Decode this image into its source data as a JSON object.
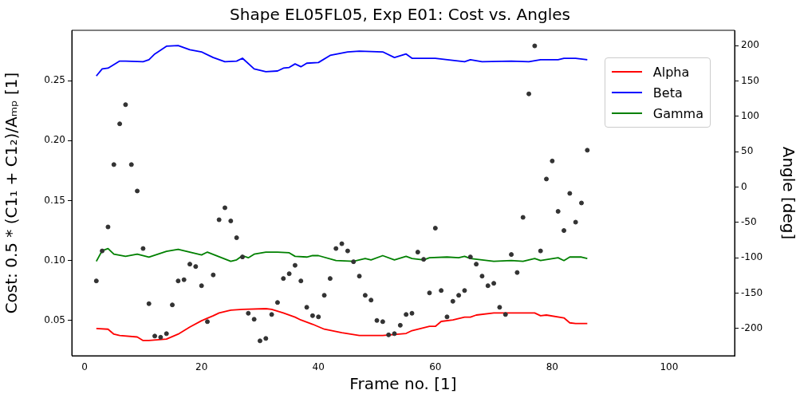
{
  "chart_data": {
    "type": "line",
    "title": "Shape EL05FL05, Exp E01: Cost vs. Angles",
    "xlabel": "Frame no. [1]",
    "ylabel": "Cost: 0.5 * (C1₁ + C1₂)/Aₘₚ [1]",
    "y2label": "Angle [deg]",
    "xlim": [
      -2.2,
      111.2
    ],
    "xticks": [
      0,
      20,
      40,
      60,
      80,
      100
    ],
    "ylim": [
      0.0206,
      0.292
    ],
    "yticks": [
      0.05,
      {
        "value": 0.1,
        "label": "0.10"
      },
      0.15,
      {
        "value": 0.2,
        "label": "0.20"
      },
      0.25
    ],
    "y2lim": [
      -238.5,
      221.5
    ],
    "y2ticks": [
      -200,
      -150,
      -100,
      -50,
      0,
      50,
      100,
      150,
      200
    ],
    "legend": "top right",
    "grid": false,
    "series": [
      {
        "type": "scatter",
        "color": "#333333",
        "marker": "circle",
        "x": [
          2,
          3,
          4,
          5,
          6,
          7,
          8,
          9,
          10,
          11,
          12,
          13,
          14,
          15,
          16,
          17,
          18,
          19,
          20,
          21,
          22,
          23,
          24,
          25,
          26,
          27,
          28,
          29,
          30,
          31,
          32,
          33,
          34,
          35,
          36,
          37,
          38,
          39,
          40,
          41,
          42,
          43,
          44,
          45,
          46,
          47,
          48,
          49,
          50,
          51,
          52,
          53,
          54,
          55,
          56,
          57,
          58,
          59,
          60,
          61,
          62,
          63,
          64,
          65,
          66,
          67,
          68,
          69,
          70,
          71,
          72,
          73,
          74,
          75,
          76,
          77,
          78,
          79,
          80,
          81,
          82,
          83,
          84,
          85,
          86
        ],
        "values": [
          0.083,
          0.108,
          0.128,
          0.18,
          0.214,
          0.23,
          0.18,
          0.158,
          0.11,
          0.064,
          0.037,
          0.036,
          0.039,
          0.063,
          0.083,
          0.084,
          0.097,
          0.095,
          0.079,
          0.049,
          0.088,
          0.134,
          0.144,
          0.133,
          0.119,
          0.103,
          0.056,
          0.051,
          0.033,
          0.035,
          0.055,
          0.065,
          0.085,
          0.089,
          0.096,
          0.083,
          0.061,
          0.054,
          0.053,
          0.071,
          0.085,
          0.11,
          0.114,
          0.108,
          0.099,
          0.087,
          0.071,
          0.067,
          0.05,
          0.049,
          0.038,
          0.039,
          0.046,
          0.055,
          0.056,
          0.107,
          0.101,
          0.073,
          0.127,
          0.075,
          0.053,
          0.066,
          0.071,
          0.075,
          0.103,
          0.097,
          0.087,
          0.079,
          0.081,
          0.061,
          0.055,
          0.105,
          0.09,
          0.136,
          0.239,
          0.279,
          0.108,
          0.168,
          0.183,
          0.141,
          0.125,
          0.156,
          0.132,
          0.148,
          0.192
        ]
      },
      {
        "name": "Alpha",
        "color": "#ff0000",
        "axis": "y2",
        "x": [
          2,
          4,
          5,
          6,
          9,
          10,
          11,
          14,
          16,
          18,
          20,
          22,
          23,
          25,
          27,
          31,
          32,
          34,
          36,
          37,
          39,
          41,
          44,
          47,
          51,
          55,
          56,
          59,
          60,
          61,
          63,
          65,
          66,
          67,
          70,
          73,
          77,
          78,
          79,
          82,
          83,
          84,
          86
        ],
        "values": [
          -200,
          -201,
          -208,
          -210,
          -212,
          -217,
          -217,
          -215,
          -208,
          -198,
          -189,
          -182,
          -178,
          -174,
          -173,
          -172,
          -173,
          -178,
          -184,
          -188,
          -194,
          -201,
          -206,
          -210,
          -210,
          -207,
          -203,
          -197,
          -197,
          -190,
          -188,
          -184,
          -184,
          -181,
          -178,
          -178,
          -178,
          -182,
          -181,
          -185,
          -192,
          -193,
          -193
        ]
      },
      {
        "name": "Beta",
        "color": "#0000ff",
        "axis": "y2",
        "x": [
          2,
          3,
          4,
          6,
          7,
          10,
          11,
          12,
          14,
          16,
          18,
          20,
          22,
          24,
          26,
          27,
          29,
          31,
          33,
          34,
          35,
          36,
          37,
          38,
          40,
          42,
          45,
          47,
          51,
          53,
          55,
          56,
          60,
          65,
          66,
          68,
          73,
          76,
          78,
          81,
          82,
          84,
          86
        ],
        "values": [
          157,
          167,
          168,
          178,
          178,
          177,
          180,
          188,
          199,
          200,
          194,
          191,
          183,
          177,
          178,
          182,
          167,
          163,
          164,
          168,
          169,
          174,
          170,
          175,
          176,
          186,
          191,
          192,
          191,
          183,
          188,
          182,
          182,
          177,
          180,
          177,
          178,
          177,
          180,
          180,
          182,
          182,
          180
        ]
      },
      {
        "name": "Gamma",
        "color": "#008000",
        "axis": "y2",
        "x": [
          2,
          3,
          4,
          5,
          7,
          9,
          11,
          14,
          16,
          18,
          20,
          21,
          25,
          26,
          27,
          28,
          29,
          31,
          33,
          35,
          36,
          38,
          39,
          40,
          43,
          46,
          48,
          49,
          51,
          53,
          55,
          56,
          58,
          59,
          62,
          64,
          65,
          66,
          68,
          70,
          73,
          75,
          77,
          78,
          81,
          82,
          83,
          85,
          86
        ],
        "values": [
          -105,
          -90,
          -87,
          -95,
          -98,
          -95,
          -99,
          -91,
          -88,
          -92,
          -96,
          -92,
          -105,
          -103,
          -97,
          -100,
          -95,
          -92,
          -92,
          -93,
          -98,
          -99,
          -97,
          -97,
          -104,
          -105,
          -101,
          -103,
          -97,
          -103,
          -98,
          -101,
          -103,
          -100,
          -99,
          -100,
          -98,
          -101,
          -103,
          -105,
          -104,
          -105,
          -101,
          -104,
          -100,
          -104,
          -99,
          -99,
          -101
        ]
      }
    ]
  }
}
